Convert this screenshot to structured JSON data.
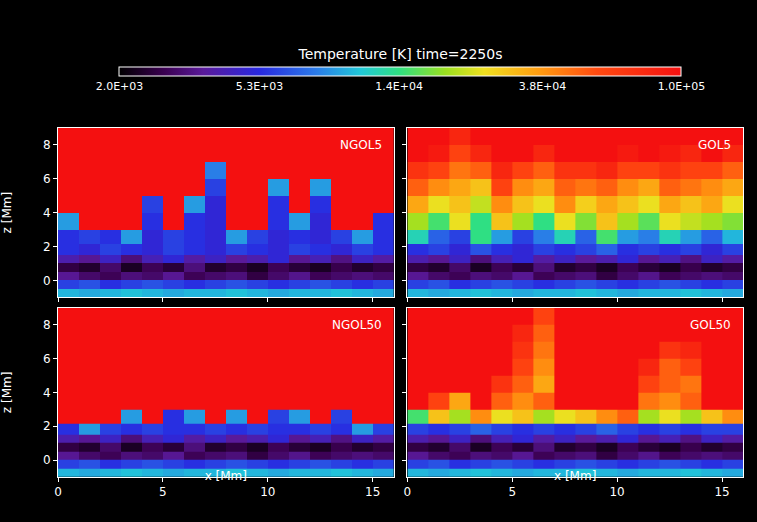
{
  "chart_data": {
    "type": "heatmap",
    "title": "Temperature [K] time=2250s",
    "log": true,
    "colorbar": {
      "range": [
        2000,
        100000
      ],
      "ticks": [
        {
          "value": 2000,
          "label": "2.0E+03"
        },
        {
          "value": 5300,
          "label": "5.3E+03"
        },
        {
          "value": 14000,
          "label": "1.4E+04"
        },
        {
          "value": 38000,
          "label": "3.8E+04"
        },
        {
          "value": 100000,
          "label": "1.0E+05"
        }
      ]
    },
    "xlabel": "x [Mm]",
    "ylabel": "z [Mm]",
    "xlim": [
      0,
      16
    ],
    "ylim": [
      -1,
      9
    ],
    "xticks": [
      0,
      5,
      10,
      15
    ],
    "yticks": [
      0,
      2,
      4,
      6,
      8
    ],
    "x": [
      0.5,
      1.5,
      2.5,
      3.5,
      4.5,
      5.5,
      6.5,
      7.5,
      8.5,
      9.5,
      10.5,
      11.5,
      12.5,
      13.5,
      14.5,
      15.5
    ],
    "y": [
      -0.75,
      -0.25,
      0.25,
      0.75,
      1.25,
      1.75,
      2.5,
      3.5,
      4.5,
      5.5,
      6.5,
      7.5,
      8.5
    ],
    "panels": [
      {
        "name": "NGOL5",
        "tick_labels": "y",
        "cells": [
          [
            10000,
            9500,
            10000,
            10500,
            10000,
            9500,
            10000,
            10000,
            10500,
            10000,
            9500,
            10000,
            10000,
            10500,
            10000,
            9500
          ],
          [
            6000,
            6500,
            5500,
            6000,
            6500,
            6000,
            5500,
            6000,
            6500,
            6000,
            5500,
            6000,
            6500,
            6000,
            5500,
            6000
          ],
          [
            3500,
            3000,
            2800,
            3200,
            3000,
            3500,
            2800,
            3000,
            3200,
            2600,
            3000,
            3400,
            2800,
            3000,
            3200,
            3000
          ],
          [
            2600,
            2400,
            3000,
            2300,
            2800,
            2500,
            3200,
            2400,
            2600,
            2300,
            2800,
            2500,
            2300,
            2700,
            2400,
            2600
          ],
          [
            4000,
            3500,
            4500,
            3200,
            4200,
            5000,
            3800,
            4500,
            3600,
            4000,
            5000,
            3500,
            4200,
            3300,
            4500,
            3800
          ],
          [
            5500,
            5000,
            6000,
            5500,
            5000,
            6000,
            5500,
            5000,
            6000,
            5500,
            5000,
            6000,
            5500,
            5000,
            6000,
            5500
          ],
          [
            5500,
            6000,
            5500,
            9000,
            5000,
            6000,
            5500,
            5000,
            9000,
            6000,
            5000,
            5500,
            5000,
            6000,
            9000,
            5500
          ],
          [
            9000,
            100000,
            100000,
            100000,
            5500,
            100000,
            5500,
            5000,
            100000,
            100000,
            5500,
            9000,
            5000,
            100000,
            100000,
            5500
          ],
          [
            100000,
            100000,
            100000,
            100000,
            6000,
            100000,
            9000,
            5000,
            100000,
            100000,
            5500,
            100000,
            5500,
            100000,
            100000,
            100000
          ],
          [
            100000,
            100000,
            100000,
            100000,
            100000,
            100000,
            100000,
            6000,
            100000,
            100000,
            9000,
            100000,
            9000,
            100000,
            100000,
            100000
          ],
          [
            100000,
            100000,
            100000,
            100000,
            100000,
            100000,
            100000,
            8000,
            100000,
            100000,
            100000,
            100000,
            100000,
            100000,
            100000,
            100000
          ],
          [
            100000,
            100000,
            100000,
            100000,
            100000,
            100000,
            100000,
            100000,
            100000,
            100000,
            100000,
            100000,
            100000,
            100000,
            100000,
            100000
          ],
          [
            100000,
            100000,
            100000,
            100000,
            100000,
            100000,
            100000,
            100000,
            100000,
            100000,
            100000,
            100000,
            100000,
            100000,
            100000,
            100000
          ]
        ]
      },
      {
        "name": "GOL5",
        "tick_labels": false,
        "cells": [
          [
            10000,
            9500,
            10000,
            10500,
            10000,
            9500,
            10000,
            10000,
            10500,
            10000,
            9500,
            10000,
            10000,
            10500,
            10000,
            9500
          ],
          [
            6000,
            6500,
            5500,
            6000,
            6500,
            6000,
            5500,
            6000,
            6500,
            6000,
            5500,
            6000,
            6500,
            6000,
            5500,
            6000
          ],
          [
            3500,
            3000,
            2800,
            3200,
            3000,
            3500,
            2800,
            3000,
            3200,
            2600,
            3000,
            3400,
            2800,
            3000,
            3200,
            3000
          ],
          [
            2600,
            2400,
            3000,
            2300,
            2800,
            2500,
            3200,
            2400,
            2600,
            2300,
            2800,
            2500,
            2300,
            2700,
            2400,
            2600
          ],
          [
            4000,
            3500,
            4500,
            3200,
            4200,
            5000,
            3800,
            4500,
            3600,
            4000,
            5000,
            3500,
            4200,
            3300,
            4500,
            3800
          ],
          [
            5500,
            6000,
            5000,
            6500,
            5500,
            5000,
            6000,
            5500,
            6000,
            7000,
            5500,
            6000,
            5500,
            6000,
            5000,
            6000
          ],
          [
            12000,
            7000,
            6000,
            14000,
            9000,
            6000,
            8000,
            12000,
            7000,
            15000,
            9000,
            8000,
            12000,
            9000,
            7000,
            10000
          ],
          [
            20000,
            15000,
            25000,
            14000,
            30000,
            20000,
            14000,
            25000,
            18000,
            30000,
            20000,
            16000,
            25000,
            22000,
            20000,
            18000
          ],
          [
            35000,
            25000,
            30000,
            22000,
            40000,
            30000,
            25000,
            40000,
            28000,
            35000,
            30000,
            25000,
            35000,
            30000,
            35000,
            25000
          ],
          [
            50000,
            40000,
            35000,
            30000,
            60000,
            40000,
            35000,
            50000,
            45000,
            50000,
            40000,
            35000,
            50000,
            45000,
            40000,
            35000
          ],
          [
            70000,
            60000,
            45000,
            50000,
            80000,
            60000,
            50000,
            70000,
            70000,
            80000,
            60000,
            60000,
            70000,
            60000,
            60000,
            50000
          ],
          [
            100000,
            90000,
            60000,
            80000,
            100000,
            100000,
            80000,
            100000,
            100000,
            100000,
            90000,
            100000,
            90000,
            80000,
            100000,
            80000
          ],
          [
            100000,
            100000,
            80000,
            100000,
            100000,
            100000,
            100000,
            100000,
            100000,
            100000,
            100000,
            100000,
            100000,
            100000,
            100000,
            100000
          ]
        ]
      },
      {
        "name": "NGOL50",
        "cells": [
          [
            10000,
            9500,
            10000,
            10500,
            10000,
            9500,
            10000,
            10000,
            10500,
            10000,
            9500,
            10000,
            10000,
            10500,
            10000,
            9500
          ],
          [
            6000,
            6500,
            5500,
            6000,
            6500,
            6000,
            5500,
            6000,
            6500,
            6000,
            5500,
            6000,
            6500,
            6000,
            5500,
            6000
          ],
          [
            3500,
            3000,
            2800,
            3200,
            3000,
            3500,
            2800,
            3000,
            3200,
            2600,
            3000,
            3400,
            2800,
            3000,
            3200,
            3000
          ],
          [
            2600,
            2400,
            3000,
            2300,
            2800,
            2500,
            3200,
            2400,
            2600,
            2300,
            2800,
            2500,
            2300,
            2700,
            2400,
            2600
          ],
          [
            4000,
            3500,
            4500,
            3200,
            4200,
            5000,
            3800,
            4500,
            3600,
            4000,
            5000,
            3500,
            4200,
            3300,
            4500,
            3800
          ],
          [
            5500,
            9000,
            6000,
            5500,
            6000,
            5500,
            5500,
            6000,
            5500,
            6000,
            5500,
            5500,
            6000,
            5500,
            9000,
            6000
          ],
          [
            100000,
            100000,
            100000,
            9000,
            100000,
            5500,
            9000,
            100000,
            9000,
            100000,
            6000,
            9000,
            100000,
            6000,
            100000,
            100000
          ],
          [
            100000,
            100000,
            100000,
            100000,
            100000,
            100000,
            100000,
            100000,
            100000,
            100000,
            100000,
            100000,
            100000,
            100000,
            100000,
            100000
          ],
          [
            100000,
            100000,
            100000,
            100000,
            100000,
            100000,
            100000,
            100000,
            100000,
            100000,
            100000,
            100000,
            100000,
            100000,
            100000,
            100000
          ],
          [
            100000,
            100000,
            100000,
            100000,
            100000,
            100000,
            100000,
            100000,
            100000,
            100000,
            100000,
            100000,
            100000,
            100000,
            100000,
            100000
          ],
          [
            100000,
            100000,
            100000,
            100000,
            100000,
            100000,
            100000,
            100000,
            100000,
            100000,
            100000,
            100000,
            100000,
            100000,
            100000,
            100000
          ],
          [
            100000,
            100000,
            100000,
            100000,
            100000,
            100000,
            100000,
            100000,
            100000,
            100000,
            100000,
            100000,
            100000,
            100000,
            100000,
            100000
          ],
          [
            100000,
            100000,
            100000,
            100000,
            100000,
            100000,
            100000,
            100000,
            100000,
            100000,
            100000,
            100000,
            100000,
            100000,
            100000,
            100000
          ]
        ]
      },
      {
        "name": "GOL50",
        "tick_labels": "x",
        "cells": [
          [
            10000,
            9500,
            10000,
            10500,
            10000,
            9500,
            10000,
            10000,
            10500,
            10000,
            9500,
            10000,
            10000,
            10500,
            10000,
            9500
          ],
          [
            6000,
            6500,
            5500,
            6000,
            6500,
            6000,
            5500,
            6000,
            6500,
            6000,
            5500,
            6000,
            6500,
            6000,
            5500,
            6000
          ],
          [
            3500,
            3000,
            2800,
            3200,
            3000,
            3500,
            2800,
            3000,
            3200,
            2600,
            3000,
            3400,
            2800,
            3000,
            3200,
            3000
          ],
          [
            2600,
            2400,
            3000,
            2300,
            2800,
            2500,
            3200,
            2400,
            2600,
            2300,
            2800,
            2500,
            2300,
            2700,
            2400,
            2600
          ],
          [
            4000,
            3500,
            4500,
            3200,
            4200,
            5000,
            3800,
            4500,
            3600,
            4000,
            5000,
            3500,
            4200,
            3300,
            4500,
            3800
          ],
          [
            6000,
            5500,
            6000,
            7000,
            6000,
            5500,
            6000,
            5500,
            6000,
            7000,
            6000,
            5500,
            6000,
            5500,
            6000,
            6000
          ],
          [
            15000,
            30000,
            20000,
            40000,
            25000,
            30000,
            20000,
            25000,
            30000,
            40000,
            50000,
            20000,
            25000,
            20000,
            30000,
            40000
          ],
          [
            100000,
            60000,
            35000,
            100000,
            50000,
            40000,
            50000,
            100000,
            100000,
            100000,
            100000,
            45000,
            40000,
            50000,
            100000,
            100000
          ],
          [
            100000,
            100000,
            100000,
            100000,
            70000,
            50000,
            35000,
            100000,
            100000,
            100000,
            100000,
            60000,
            50000,
            45000,
            100000,
            100000
          ],
          [
            100000,
            100000,
            100000,
            100000,
            100000,
            60000,
            40000,
            100000,
            100000,
            100000,
            100000,
            80000,
            50000,
            60000,
            100000,
            100000
          ],
          [
            100000,
            100000,
            100000,
            100000,
            100000,
            70000,
            45000,
            100000,
            100000,
            100000,
            100000,
            100000,
            70000,
            80000,
            100000,
            100000
          ],
          [
            100000,
            100000,
            100000,
            100000,
            100000,
            80000,
            50000,
            100000,
            100000,
            100000,
            100000,
            100000,
            100000,
            100000,
            100000,
            100000
          ],
          [
            100000,
            100000,
            100000,
            100000,
            100000,
            100000,
            60000,
            100000,
            100000,
            100000,
            100000,
            100000,
            100000,
            100000,
            100000,
            100000
          ]
        ]
      }
    ]
  }
}
